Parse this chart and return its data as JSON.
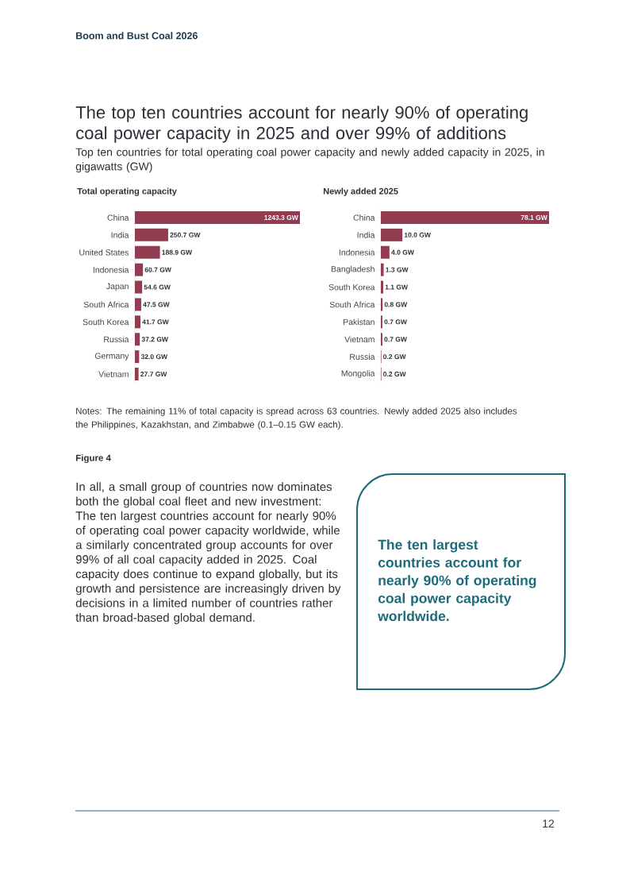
{
  "chart_data": [
    {
      "type": "bar",
      "orientation": "horizontal",
      "title": "Total operating capacity",
      "color": "#923c51",
      "categories": [
        "China",
        "India",
        "United States",
        "Indonesia",
        "Japan",
        "South Africa",
        "South Korea",
        "Russia",
        "Germany",
        "Vietnam"
      ],
      "values": [
        1243.3,
        250.7,
        188.9,
        60.7,
        54.6,
        47.5,
        41.7,
        37.2,
        32.0,
        27.7
      ],
      "value_labels": [
        "1243.3 GW",
        "250.7 GW",
        "188.9 GW",
        "60.7 GW",
        "54.6 GW",
        "47.5 GW",
        "41.7 GW",
        "37.2 GW",
        "32.0 GW",
        "27.7 GW"
      ],
      "annotations": [
        "Boom and Bust Coal 2026",
        "The top ten countries account for nearly 90% of operating coal power capacity in 2025 and over 99% of additions",
        "Top ten countries for total operating coal power capacity and newly added capacity in 2025, in gigawatts (GW)",
        "Notes: The remaining 11% of total capacity is spread across 63 countries. Newly added 2025 also includes the Philippines, Kazakhstan, and Zimbabwe (0.1–0.15 GW each).",
        "Figure 4",
        "In all, a small group of countries now dominates both the global coal fleet and new investment: The ten largest countries account for nearly 90% of operating coal power capacity worldwide, while a similarly concentrated group accounts for over 99% of all coal capacity added in 2025. Coal capacity does continue to expand globally, but its growth and persistence are increasingly driven by decisions in a limited number of countries rather than broad-based global demand.",
        "The ten largest countries account for nearly 90% of operating coal power capacity worldwide.",
        "12"
      ]
    },
    {
      "type": "bar",
      "orientation": "horizontal",
      "title": "Newly added 2025",
      "color": "#923c51",
      "categories": [
        "China",
        "India",
        "Indonesia",
        "Bangladesh",
        "South Korea",
        "South Africa",
        "Pakistan",
        "Vietnam",
        "Russia",
        "Mongolia"
      ],
      "values": [
        78.1,
        10.0,
        4.0,
        1.3,
        1.1,
        0.8,
        0.7,
        0.7,
        0.2,
        0.2
      ],
      "value_labels": [
        "78.1 GW",
        "10.0 GW",
        "4.0 GW",
        "1.3 GW",
        "1.1 GW",
        "0.8 GW",
        "0.7 GW",
        "0.7 GW",
        "0.2 GW",
        "0.2 GW"
      ]
    }
  ]
}
